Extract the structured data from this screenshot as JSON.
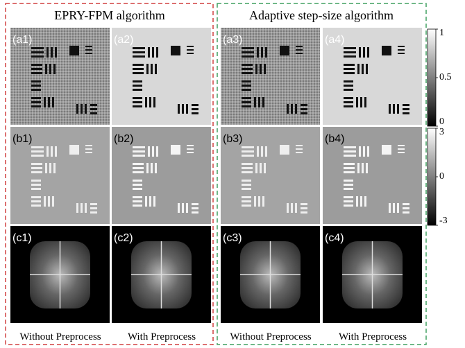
{
  "groups": [
    {
      "title": "EPRY-FPM algorithm",
      "captions": [
        "Without Preprocess",
        "With Preprocess"
      ]
    },
    {
      "title": "Adaptive step-size algorithm",
      "captions": [
        "Without Preprocess",
        "With Preprocess"
      ]
    }
  ],
  "panels": [
    [
      "(a1)",
      "(a2)",
      "(a3)",
      "(a4)"
    ],
    [
      "(b1)",
      "(b2)",
      "(b3)",
      "(b4)"
    ],
    [
      "(c1)",
      "(c2)",
      "(c3)",
      "(c4)"
    ]
  ],
  "colorbars": [
    {
      "lim": [
        0,
        1
      ],
      "ticks": [
        1,
        0.5,
        0
      ]
    },
    {
      "lim": [
        -3,
        3
      ],
      "ticks": [
        3,
        0,
        -3
      ]
    }
  ]
}
